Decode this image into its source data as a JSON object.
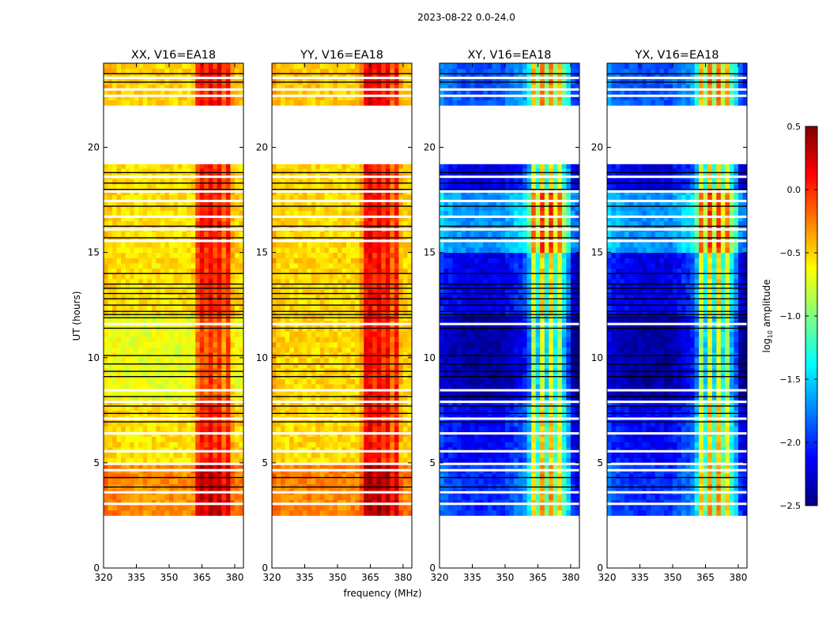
{
  "chart_data": {
    "type": "heatmap",
    "title": "2023-08-22 0.0-24.0",
    "xlabel": "frequency (MHz)",
    "ylabel": "UT (hours)",
    "xlim": [
      320,
      384
    ],
    "ylim": [
      0,
      24
    ],
    "xticks": [
      "320",
      "335",
      "350",
      "365",
      "380"
    ],
    "yticks": [
      "0",
      "5",
      "10",
      "15",
      "20"
    ],
    "colorbar": {
      "label_main": "log",
      "label_sub": "10",
      "label_tail": " amplitude",
      "range": [
        -2.5,
        0.5
      ],
      "ticks": [
        "0.5",
        "0.0",
        "−0.5",
        "−1.0",
        "−1.5",
        "−2.0",
        "−2.5"
      ],
      "tick_values": [
        0.5,
        0.0,
        -0.5,
        -1.0,
        -1.5,
        -2.0,
        -2.5
      ],
      "colormap": "jet"
    },
    "freq_bin_MHz": 2,
    "time_bin_hours": 0.25,
    "data_time_ranges": [
      [
        2.5,
        19.2
      ],
      [
        22.0,
        24.0
      ]
    ],
    "flagged_white_hours": [
      3.05,
      3.6,
      4.65,
      4.95,
      5.55,
      6.4,
      7.1,
      7.9,
      8.45,
      11.6,
      15.55,
      16.1,
      16.7,
      17.45,
      17.9,
      18.6,
      22.45,
      22.75,
      23.3
    ],
    "black_line_hours": [
      3.85,
      4.3,
      6.95,
      7.35,
      7.7,
      8.15,
      9.1,
      9.35,
      9.7,
      10.1,
      11.4,
      11.9,
      12.05,
      12.2,
      12.5,
      12.8,
      13.05,
      13.3,
      13.5,
      14.0,
      15.7,
      16.25,
      17.2,
      18.0,
      18.3,
      18.8,
      23.1,
      23.5
    ],
    "panels": [
      {
        "title": "XX, V16=EA18",
        "freq_profile": [
          -0.45,
          -0.5,
          -0.5,
          -0.52,
          -0.52,
          -0.55,
          -0.55,
          -0.55,
          -0.55,
          -0.55,
          -0.55,
          -0.55,
          -0.55,
          -0.55,
          -0.55,
          -0.55,
          -0.55,
          -0.55,
          -0.55,
          -0.55,
          -0.5,
          -0.1,
          0.1,
          -0.05,
          0.15,
          -0.05,
          0.1,
          -0.2,
          0.05,
          -0.4,
          -0.5,
          -0.5
        ],
        "time_offsets": [
          [
            2.5,
            4.8,
            0.25
          ],
          [
            4.8,
            8.0,
            0.0
          ],
          [
            8.0,
            12.0,
            -0.15
          ],
          [
            12.0,
            19.2,
            0.0
          ],
          [
            22.0,
            24.0,
            0.05
          ]
        ]
      },
      {
        "title": "YY, V16=EA18",
        "freq_profile": [
          -0.4,
          -0.5,
          -0.5,
          -0.52,
          -0.52,
          -0.52,
          -0.52,
          -0.52,
          -0.52,
          -0.52,
          -0.52,
          -0.52,
          -0.52,
          -0.52,
          -0.52,
          -0.52,
          -0.52,
          -0.52,
          -0.52,
          -0.52,
          -0.35,
          0.1,
          0.15,
          0.0,
          0.15,
          -0.05,
          0.1,
          -0.2,
          0.05,
          -0.4,
          -0.5,
          -0.5
        ],
        "time_offsets": [
          [
            2.5,
            4.8,
            0.25
          ],
          [
            4.8,
            8.0,
            0.0
          ],
          [
            8.0,
            12.0,
            0.0
          ],
          [
            12.0,
            19.2,
            0.0
          ],
          [
            22.0,
            24.0,
            0.05
          ]
        ]
      },
      {
        "title": "XY, V16=EA18",
        "freq_profile": [
          -2.1,
          -2.2,
          -2.2,
          -2.25,
          -2.25,
          -2.3,
          -2.3,
          -2.3,
          -2.3,
          -2.3,
          -2.3,
          -2.3,
          -2.3,
          -2.3,
          -2.3,
          -2.2,
          -2.2,
          -2.1,
          -2.1,
          -2.0,
          -1.7,
          -0.8,
          -1.4,
          -0.6,
          -1.4,
          -0.6,
          -1.3,
          -0.8,
          -1.5,
          -1.8,
          -2.3,
          -2.4
        ],
        "time_offsets": [
          [
            2.5,
            4.8,
            0.3
          ],
          [
            4.8,
            8.0,
            0.15
          ],
          [
            8.0,
            12.0,
            -0.1
          ],
          [
            12.0,
            15.0,
            0.1
          ],
          [
            15.0,
            17.8,
            0.6
          ],
          [
            17.8,
            19.2,
            0.1
          ],
          [
            22.0,
            24.0,
            0.4
          ]
        ]
      },
      {
        "title": "YX, V16=EA18",
        "freq_profile": [
          -2.1,
          -2.2,
          -2.2,
          -2.25,
          -2.25,
          -2.3,
          -2.3,
          -2.3,
          -2.3,
          -2.3,
          -2.3,
          -2.3,
          -2.3,
          -2.3,
          -2.3,
          -2.2,
          -2.2,
          -2.1,
          -2.1,
          -2.0,
          -1.7,
          -0.8,
          -1.4,
          -0.6,
          -1.4,
          -0.6,
          -1.3,
          -0.8,
          -1.5,
          -1.8,
          -2.3,
          -2.4
        ],
        "time_offsets": [
          [
            2.5,
            4.8,
            0.3
          ],
          [
            4.8,
            8.0,
            0.15
          ],
          [
            8.0,
            12.0,
            -0.1
          ],
          [
            12.0,
            15.0,
            0.1
          ],
          [
            15.0,
            17.8,
            0.6
          ],
          [
            17.8,
            19.2,
            0.1
          ],
          [
            22.0,
            24.0,
            0.4
          ]
        ]
      }
    ]
  }
}
